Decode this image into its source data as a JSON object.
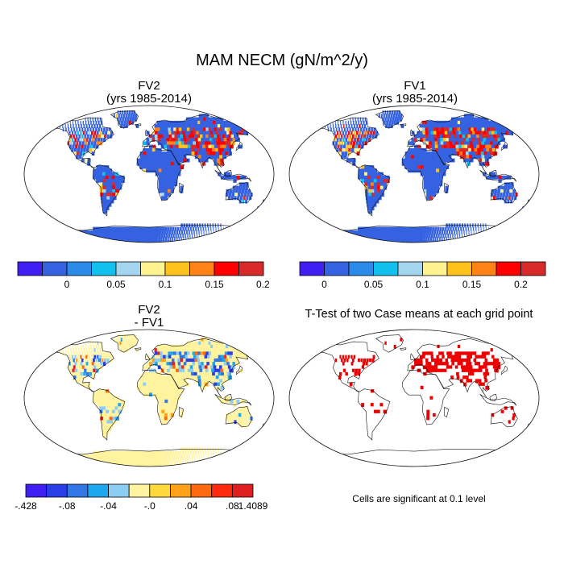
{
  "title": "MAM NECM (gN/m^2/y)",
  "panels": [
    {
      "title_line1": "FV2",
      "title_line2": "(yrs 1985-2014)"
    },
    {
      "title_line1": "FV1",
      "title_line2": "(yrs 1985-2014)"
    },
    {
      "title_line1": "FV2",
      "title_line2": "- FV1"
    },
    {
      "title_line1": "T-Test of two Case means at each grid point",
      "title_line2": ""
    }
  ],
  "significance_note": "Cells are significant at 0.1 level",
  "colors": {
    "land_base_mean": "#3050e0",
    "land_base_diff": "#ffee99",
    "significant": "#ee0000",
    "ocean": "#ffffff"
  },
  "chart_data": [
    {
      "type": "heatmap",
      "title": "FV2 (yrs 1985-2014)",
      "colorbar": {
        "colors": [
          "#3f1ff2",
          "#3462e0",
          "#2c8ae8",
          "#12c0ee",
          "#a3d5ef",
          "#fff390",
          "#ffc21d",
          "#ff8316",
          "#ff0000",
          "#d82a2a"
        ],
        "tick_labels": [
          "0",
          "0.05",
          "0.1",
          "0.15",
          "0.2"
        ]
      }
    },
    {
      "type": "heatmap",
      "title": "FV1 (yrs 1985-2014)",
      "colorbar": {
        "colors": [
          "#3f1ff2",
          "#3462e0",
          "#2c8ae8",
          "#12c0ee",
          "#a3d5ef",
          "#fff390",
          "#ffc21d",
          "#ff8316",
          "#ff0000",
          "#d82a2a"
        ],
        "tick_labels": [
          "0",
          "0.05",
          "0.1",
          "0.15",
          "0.2"
        ]
      }
    },
    {
      "type": "heatmap",
      "title": "FV2 - FV1",
      "colorbar": {
        "colors": [
          "#3f1ff2",
          "#2a3fe8",
          "#3376e6",
          "#1ea6ee",
          "#8ccdf4",
          "#fff3a0",
          "#ffd83d",
          "#ffa21a",
          "#ff6a10",
          "#ff2a10",
          "#e02020"
        ],
        "tick_labels": [
          "-.428",
          "-.08",
          "-.04",
          "-.0",
          ".04",
          ".08",
          "1.4089"
        ]
      }
    },
    {
      "type": "heatmap",
      "title": "T-Test of two Case means at each grid point"
    }
  ]
}
